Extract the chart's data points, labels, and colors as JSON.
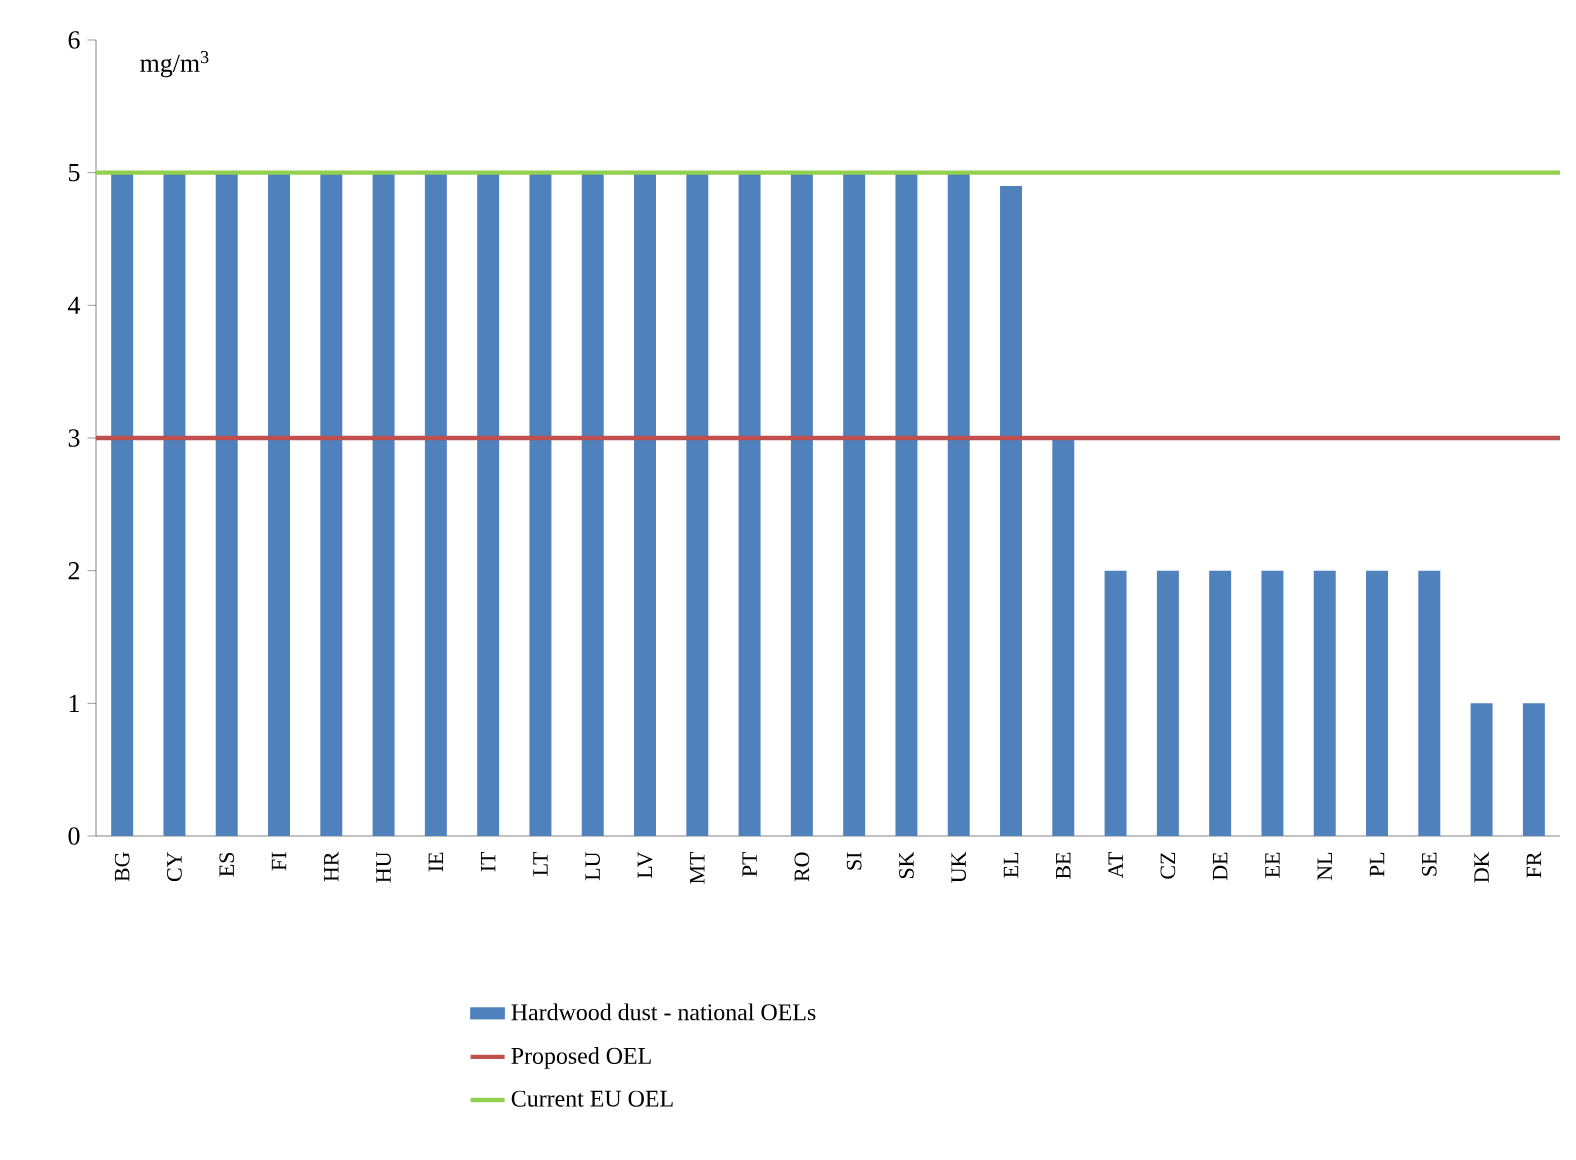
{
  "chart_data": {
    "type": "bar",
    "ylabel": "mg/m$^{3}$",
    "categories": [
      "BG",
      "CY",
      "ES",
      "FI",
      "HR",
      "HU",
      "IE",
      "IT",
      "LT",
      "LU",
      "LV",
      "MT",
      "PT",
      "RO",
      "SI",
      "SK",
      "UK",
      "EL",
      "BE",
      "AT",
      "CZ",
      "DE",
      "EE",
      "NL",
      "PL",
      "SE",
      "DK",
      "FR"
    ],
    "series": [
      {
        "name": "Hardwood dust - national OELs",
        "color": "#4f81bd",
        "values": [
          5,
          5,
          5,
          5,
          5,
          5,
          5,
          5,
          5,
          5,
          5,
          5,
          5,
          5,
          5,
          5,
          5,
          4.9,
          3,
          2,
          2,
          2,
          2,
          2,
          2,
          2,
          1,
          1
        ]
      }
    ],
    "ref_lines": [
      {
        "axis": "y",
        "value": 3,
        "label": "Proposed OEL",
        "color": "#c0504d"
      },
      {
        "axis": "y",
        "value": 5,
        "label": "Current EU OEL",
        "color": "#92d050"
      }
    ],
    "ylim": [
      0,
      6
    ],
    "yticks": [
      0,
      1,
      2,
      3,
      4,
      5,
      6
    ],
    "grid": false,
    "legend": "bottom"
  }
}
